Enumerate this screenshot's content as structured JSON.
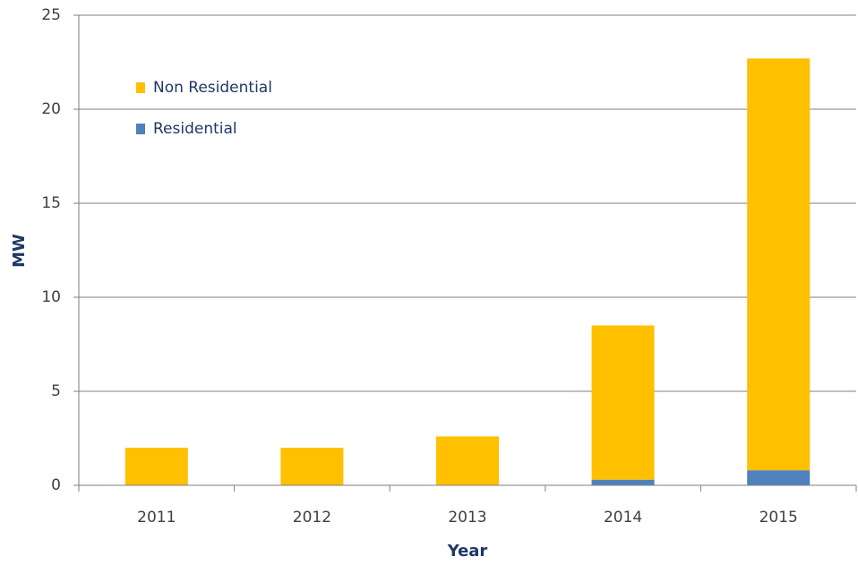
{
  "chart_data": {
    "type": "stacked_bar",
    "categories": [
      "2011",
      "2012",
      "2013",
      "2014",
      "2015"
    ],
    "series": [
      {
        "name": "Residential",
        "color": "#4f81bd",
        "values": [
          0,
          0,
          0,
          0.3,
          0.8
        ]
      },
      {
        "name": "Non Residential",
        "color": "#ffc000",
        "values": [
          2.0,
          2.0,
          2.6,
          8.2,
          21.9
        ]
      }
    ],
    "x_label": "Year",
    "y_label": "MW",
    "ylim": [
      0,
      25
    ],
    "yticks": [
      0,
      5,
      10,
      15,
      20,
      25
    ],
    "grid": true,
    "legend": "upper left"
  }
}
